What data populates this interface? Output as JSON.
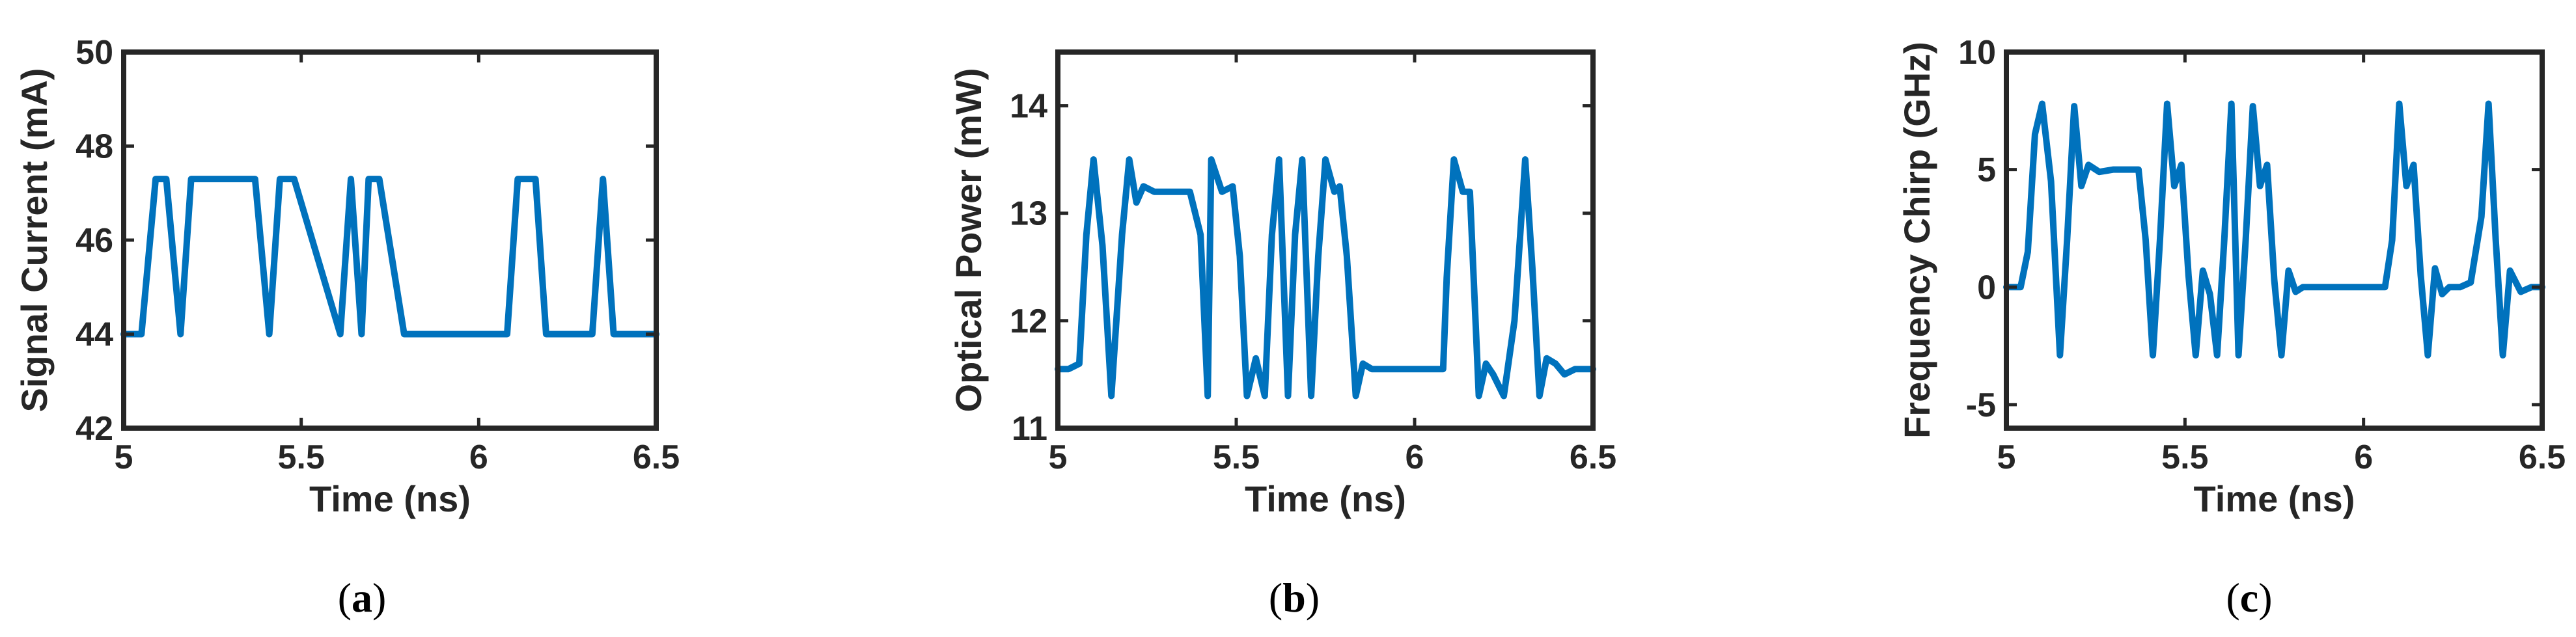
{
  "chart_data": [
    {
      "type": "line",
      "caption": "(a)",
      "xlabel": "Time (ns)",
      "ylabel": "Signal Current (mA)",
      "xlim": [
        5,
        6.5
      ],
      "ylim": [
        42,
        50
      ],
      "xticks": [
        "5",
        "5.5",
        "6",
        "6.5"
      ],
      "yticks": [
        "42",
        "44",
        "46",
        "48",
        "50"
      ],
      "color": "#0072BD",
      "x": [
        5.0,
        5.05,
        5.09,
        5.12,
        5.16,
        5.19,
        5.37,
        5.41,
        5.44,
        5.48,
        5.61,
        5.64,
        5.67,
        5.69,
        5.72,
        5.79,
        5.82,
        6.08,
        6.11,
        6.16,
        6.19,
        6.32,
        6.35,
        6.38,
        6.4,
        6.5
      ],
      "values": [
        44.0,
        44.0,
        47.3,
        47.3,
        44.0,
        47.3,
        47.3,
        44.0,
        47.3,
        47.3,
        44.0,
        47.3,
        44.0,
        47.3,
        47.3,
        44.0,
        44.0,
        44.0,
        47.3,
        47.3,
        44.0,
        44.0,
        47.3,
        44.0,
        44.0,
        44.0
      ]
    },
    {
      "type": "line",
      "caption": "(b)",
      "xlabel": "Time (ns)",
      "ylabel": "Optical Power (mW)",
      "xlim": [
        5,
        6.5
      ],
      "ylim": [
        11,
        14.5
      ],
      "xticks": [
        "5",
        "5.5",
        "6",
        "6.5"
      ],
      "yticks": [
        "11",
        "12",
        "13",
        "14"
      ],
      "color": "#0072BD",
      "x": [
        5.0,
        5.03,
        5.06,
        5.08,
        5.1,
        5.125,
        5.15,
        5.18,
        5.2,
        5.22,
        5.24,
        5.27,
        5.3,
        5.37,
        5.4,
        5.42,
        5.43,
        5.46,
        5.49,
        5.51,
        5.53,
        5.555,
        5.58,
        5.6,
        5.62,
        5.645,
        5.665,
        5.685,
        5.71,
        5.73,
        5.75,
        5.775,
        5.79,
        5.81,
        5.835,
        5.855,
        5.88,
        5.91,
        5.96,
        6.08,
        6.09,
        6.11,
        6.135,
        6.155,
        6.18,
        6.2,
        6.22,
        6.25,
        6.28,
        6.31,
        6.33,
        6.35,
        6.37,
        6.395,
        6.42,
        6.45,
        6.48,
        6.5
      ],
      "values": [
        11.55,
        11.55,
        11.6,
        12.8,
        13.5,
        12.7,
        11.3,
        12.8,
        13.5,
        13.1,
        13.25,
        13.2,
        13.2,
        13.2,
        12.8,
        11.3,
        13.5,
        13.2,
        13.25,
        12.6,
        11.3,
        11.65,
        11.3,
        12.8,
        13.5,
        11.3,
        12.8,
        13.5,
        11.3,
        12.6,
        13.5,
        13.2,
        13.25,
        12.6,
        11.3,
        11.6,
        11.55,
        11.55,
        11.55,
        11.55,
        12.4,
        13.5,
        13.2,
        13.2,
        11.3,
        11.6,
        11.5,
        11.3,
        12.0,
        13.5,
        12.5,
        11.3,
        11.65,
        11.6,
        11.5,
        11.55,
        11.55,
        11.55
      ]
    },
    {
      "type": "line",
      "caption": "(c)",
      "xlabel": "Time (ns)",
      "ylabel": "Frequency Chirp (GHz)",
      "xlim": [
        5,
        6.5
      ],
      "ylim": [
        -6,
        10
      ],
      "xticks": [
        "5",
        "5.5",
        "6",
        "6.5"
      ],
      "yticks": [
        "-5",
        "0",
        "5",
        "10"
      ],
      "color": "#0072BD",
      "x": [
        5.0,
        5.04,
        5.06,
        5.08,
        5.1,
        5.125,
        5.15,
        5.17,
        5.19,
        5.21,
        5.23,
        5.26,
        5.3,
        5.37,
        5.39,
        5.41,
        5.43,
        5.45,
        5.47,
        5.49,
        5.51,
        5.53,
        5.55,
        5.57,
        5.59,
        5.61,
        5.63,
        5.65,
        5.67,
        5.69,
        5.71,
        5.73,
        5.75,
        5.77,
        5.79,
        5.81,
        5.83,
        5.85,
        5.87,
        5.9,
        5.94,
        6.06,
        6.08,
        6.1,
        6.12,
        6.14,
        6.16,
        6.18,
        6.2,
        6.22,
        6.24,
        6.27,
        6.3,
        6.33,
        6.35,
        6.37,
        6.39,
        6.41,
        6.44,
        6.47,
        6.5
      ],
      "values": [
        0,
        0,
        1.5,
        6.5,
        7.8,
        4.5,
        -2.9,
        2.0,
        7.7,
        4.3,
        5.2,
        4.9,
        5.0,
        5.0,
        2.0,
        -2.9,
        2.0,
        7.8,
        4.3,
        5.2,
        0.5,
        -2.9,
        0.7,
        -0.3,
        -2.9,
        2.0,
        7.8,
        -2.9,
        2.0,
        7.7,
        4.3,
        5.2,
        0.3,
        -2.9,
        0.7,
        -0.2,
        0,
        0,
        0,
        0,
        0,
        0,
        2.0,
        7.8,
        4.3,
        5.2,
        0.5,
        -2.9,
        0.8,
        -0.3,
        0,
        0,
        0.2,
        3.0,
        7.8,
        2.0,
        -2.9,
        0.7,
        -0.2,
        0,
        0
      ]
    }
  ]
}
